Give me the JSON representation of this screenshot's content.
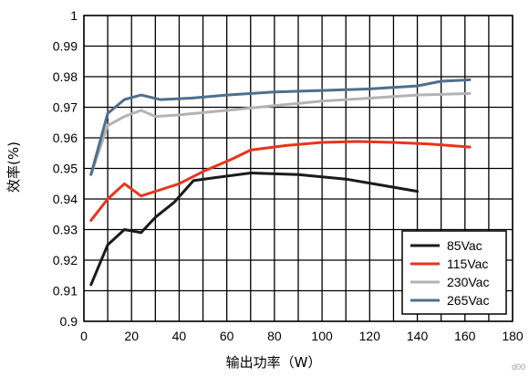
{
  "chart_data": {
    "type": "line",
    "title": "",
    "xlabel": "输出功率（W）",
    "ylabel": "效率(%)",
    "xlim": [
      0,
      180
    ],
    "ylim": [
      0.9,
      1.0
    ],
    "x_ticks": [
      "0",
      "20",
      "40",
      "60",
      "80",
      "100",
      "120",
      "140",
      "160",
      "180"
    ],
    "y_ticks": [
      "0.9",
      "0.91",
      "0.92",
      "0.93",
      "0.94",
      "0.95",
      "0.96",
      "0.97",
      "0.98",
      "0.99",
      "1"
    ],
    "x_grid_step": 10,
    "y_grid_step": 0.01,
    "grid": true,
    "legend": "bottom-right",
    "corner_label": "d00",
    "series": [
      {
        "name": "85Vac",
        "color": "#1a1a1a",
        "points": [
          [
            3,
            0.912
          ],
          [
            10,
            0.925
          ],
          [
            17,
            0.93
          ],
          [
            24,
            0.929
          ],
          [
            30,
            0.934
          ],
          [
            38,
            0.939
          ],
          [
            46,
            0.946
          ],
          [
            55,
            0.947
          ],
          [
            70,
            0.9485
          ],
          [
            90,
            0.948
          ],
          [
            110,
            0.9465
          ],
          [
            125,
            0.9445
          ],
          [
            140,
            0.9425
          ]
        ]
      },
      {
        "name": "115Vac",
        "color": "#e8341c",
        "points": [
          [
            3,
            0.933
          ],
          [
            10,
            0.94
          ],
          [
            17,
            0.945
          ],
          [
            24,
            0.941
          ],
          [
            32,
            0.943
          ],
          [
            40,
            0.945
          ],
          [
            50,
            0.949
          ],
          [
            62,
            0.953
          ],
          [
            70,
            0.956
          ],
          [
            85,
            0.9575
          ],
          [
            100,
            0.9585
          ],
          [
            115,
            0.9588
          ],
          [
            130,
            0.9585
          ],
          [
            145,
            0.958
          ],
          [
            162,
            0.957
          ]
        ]
      },
      {
        "name": "230Vac",
        "color": "#b3b3b3",
        "points": [
          [
            3,
            0.948
          ],
          [
            10,
            0.964
          ],
          [
            17,
            0.967
          ],
          [
            24,
            0.969
          ],
          [
            30,
            0.967
          ],
          [
            40,
            0.9675
          ],
          [
            60,
            0.969
          ],
          [
            80,
            0.9705
          ],
          [
            100,
            0.972
          ],
          [
            120,
            0.973
          ],
          [
            140,
            0.974
          ],
          [
            162,
            0.9745
          ]
        ]
      },
      {
        "name": "265Vac",
        "color": "#4f6f8c",
        "points": [
          [
            3,
            0.948
          ],
          [
            10,
            0.968
          ],
          [
            17,
            0.9725
          ],
          [
            24,
            0.974
          ],
          [
            32,
            0.9725
          ],
          [
            45,
            0.973
          ],
          [
            60,
            0.974
          ],
          [
            80,
            0.975
          ],
          [
            100,
            0.9755
          ],
          [
            120,
            0.976
          ],
          [
            140,
            0.977
          ],
          [
            150,
            0.9785
          ],
          [
            162,
            0.979
          ]
        ]
      }
    ]
  }
}
